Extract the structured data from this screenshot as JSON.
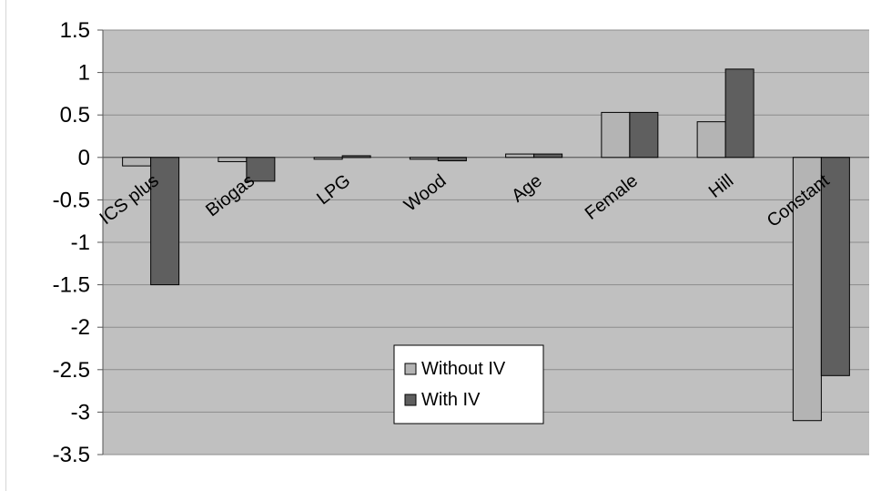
{
  "chart_data": {
    "type": "bar",
    "title": "",
    "xlabel": "",
    "ylabel": "",
    "categories": [
      "ICS plus",
      "Biogas",
      "LPG",
      "Wood",
      "Age",
      "Female",
      "Hill",
      "Constant"
    ],
    "series": [
      {
        "name": "Without IV",
        "color": "#b4b4b4",
        "values": [
          -0.1,
          -0.05,
          0.0,
          -0.02,
          0.04,
          0.53,
          0.42,
          -3.1
        ]
      },
      {
        "name": "With IV",
        "color": "#5f5f5f",
        "values": [
          -1.5,
          -0.28,
          0.02,
          -0.04,
          0.04,
          0.53,
          1.04,
          -2.57
        ]
      }
    ],
    "ylim": [
      -3.5,
      1.5
    ],
    "yticks": [
      "1.5",
      "1",
      "0.5",
      "0",
      "-0.5",
      "-1",
      "-1.5",
      "-2",
      "-2.5",
      "-3",
      "-3.5"
    ],
    "grid": true,
    "plot_background": "#c0c0c0",
    "legend_position": "bottom-center"
  }
}
